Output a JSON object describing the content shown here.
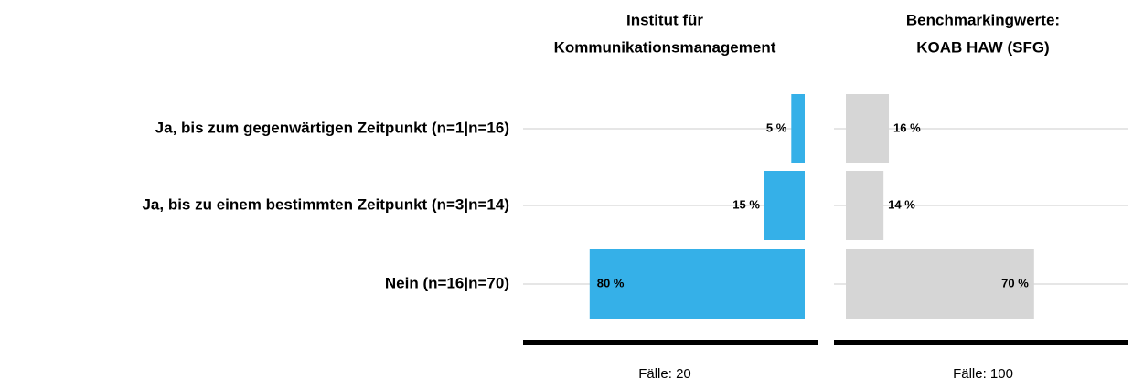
{
  "chart_data": [
    {
      "type": "bar",
      "orientation": "left",
      "title_lines": [
        "Institut für",
        "Kommunikationsmanagement"
      ],
      "categories": [
        "Ja, bis zum gegenwärtigen Zeitpunkt (n=1|n=16)",
        "Ja, bis zu einem bestimmten Zeitpunkt (n=3|n=14)",
        "Nein (n=16|n=70)"
      ],
      "values": [
        5,
        15,
        80
      ],
      "value_labels": [
        "5 %",
        "15 %",
        "80 %"
      ],
      "color": "#35b0e8",
      "xlim": [
        0,
        100
      ],
      "footer": "Fälle: 20"
    },
    {
      "type": "bar",
      "orientation": "right",
      "title_lines": [
        "Benchmarkingwerte:",
        "KOAB HAW (SFG)"
      ],
      "values": [
        16,
        14,
        70
      ],
      "value_labels": [
        "16 %",
        "14 %",
        "70 %"
      ],
      "color": "#d6d6d6",
      "xlim": [
        0,
        100
      ],
      "footer": "Fälle: 100"
    }
  ]
}
